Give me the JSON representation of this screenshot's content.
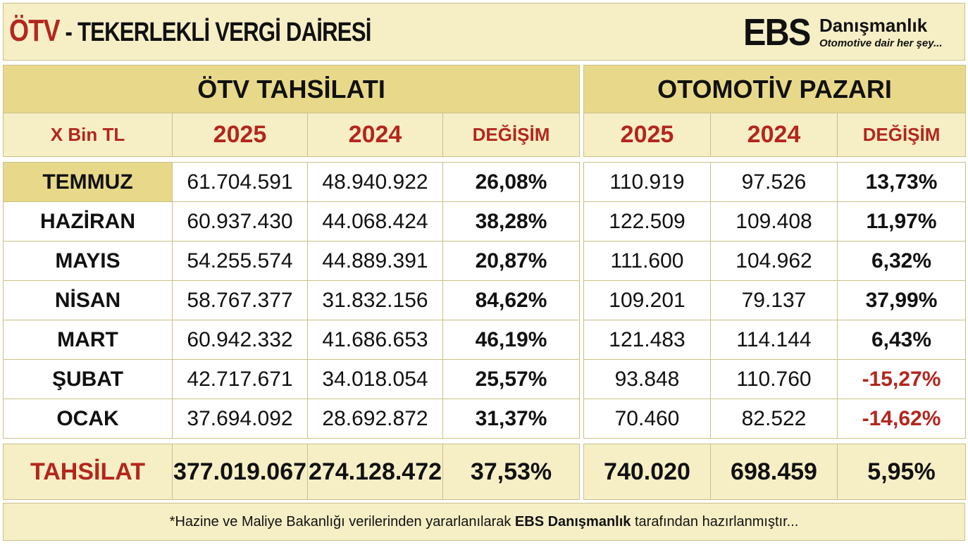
{
  "header": {
    "title_main": "ÖTV",
    "title_rest": " - TEKERLEKLİ VERGİ DAİRESİ",
    "logo": {
      "ebs": "EBS",
      "name": "Danışmanlık",
      "tagline": "Otomotive dair her şey..."
    }
  },
  "otv": {
    "title": "ÖTV TAHSİLATI",
    "unit_label": "X Bin TL",
    "col_2025": "2025",
    "col_2024": "2024",
    "col_change": "DEĞİŞİM"
  },
  "market": {
    "title": "OTOMOTİV PAZARI",
    "col_2025": "2025",
    "col_2024": "2024",
    "col_change": "DEĞİŞİM"
  },
  "rows": [
    {
      "month": "TEMMUZ",
      "otv_2025": "61.704.591",
      "otv_2024": "48.940.922",
      "otv_change": "26,08%",
      "mkt_2025": "110.919",
      "mkt_2024": "97.526",
      "mkt_change": "13,73%"
    },
    {
      "month": "HAZİRAN",
      "otv_2025": "60.937.430",
      "otv_2024": "44.068.424",
      "otv_change": "38,28%",
      "mkt_2025": "122.509",
      "mkt_2024": "109.408",
      "mkt_change": "11,97%"
    },
    {
      "month": "MAYIS",
      "otv_2025": "54.255.574",
      "otv_2024": "44.889.391",
      "otv_change": "20,87%",
      "mkt_2025": "111.600",
      "mkt_2024": "104.962",
      "mkt_change": "6,32%"
    },
    {
      "month": "NİSAN",
      "otv_2025": "58.767.377",
      "otv_2024": "31.832.156",
      "otv_change": "84,62%",
      "mkt_2025": "109.201",
      "mkt_2024": "79.137",
      "mkt_change": "37,99%"
    },
    {
      "month": "MART",
      "otv_2025": "60.942.332",
      "otv_2024": "41.686.653",
      "otv_change": "46,19%",
      "mkt_2025": "121.483",
      "mkt_2024": "114.144",
      "mkt_change": "6,43%"
    },
    {
      "month": "ŞUBAT",
      "otv_2025": "42.717.671",
      "otv_2024": "34.018.054",
      "otv_change": "25,57%",
      "mkt_2025": "93.848",
      "mkt_2024": "110.760",
      "mkt_change": "-15,27%"
    },
    {
      "month": "OCAK",
      "otv_2025": "37.694.092",
      "otv_2024": "28.692.872",
      "otv_change": "31,37%",
      "mkt_2025": "70.460",
      "mkt_2024": "82.522",
      "mkt_change": "-14,62%"
    }
  ],
  "total": {
    "label": "TAHSİLAT",
    "otv_2025": "377.019.067",
    "otv_2024": "274.128.472",
    "otv_change": "37,53%",
    "mkt_2025": "740.020",
    "mkt_2024": "698.459",
    "mkt_change": "5,95%"
  },
  "footer": {
    "pre": "*Hazine ve Maliye Bakanlığı verilerinden yararlanılarak ",
    "brand": "EBS Danışmanlık",
    "post": " tarafından hazırlanmıştır..."
  },
  "colors": {
    "accent_red": "#b3261e",
    "header_fill": "#e8d98a",
    "light_fill": "#f6efc6"
  }
}
